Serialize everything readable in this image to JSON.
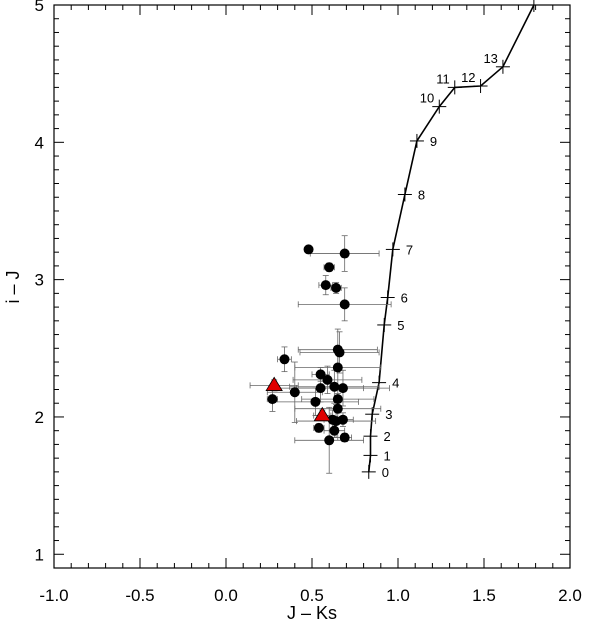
{
  "chart_data": {
    "type": "scatter",
    "xlabel": "J – Ks",
    "ylabel": "i – J",
    "xlim": [
      -1.0,
      2.0
    ],
    "ylim": [
      0.9,
      5.0
    ],
    "xticks": [
      "-1.0",
      "-0.5",
      "0.0",
      "0.5",
      "1.0",
      "1.5",
      "2.0"
    ],
    "yticks": [
      "1",
      "2",
      "3",
      "4",
      "5"
    ],
    "colors": {
      "points": "#000000",
      "triangles": "#e00000",
      "errorbars": "#666666",
      "track": "#000000"
    },
    "sequence": {
      "points": [
        {
          "x": 0.83,
          "y": 1.6,
          "label": "0"
        },
        {
          "x": 0.84,
          "y": 1.72,
          "label": "1"
        },
        {
          "x": 0.84,
          "y": 1.86,
          "label": "2"
        },
        {
          "x": 0.85,
          "y": 2.02,
          "label": "3"
        },
        {
          "x": 0.89,
          "y": 2.25,
          "label": "4"
        },
        {
          "x": 0.92,
          "y": 2.67,
          "label": "5"
        },
        {
          "x": 0.94,
          "y": 2.87,
          "label": "6"
        },
        {
          "x": 0.97,
          "y": 3.22,
          "label": "7"
        },
        {
          "x": 1.04,
          "y": 3.62,
          "label": "8"
        },
        {
          "x": 1.11,
          "y": 4.01,
          "label": "9"
        },
        {
          "x": 1.24,
          "y": 4.26,
          "label": "10"
        },
        {
          "x": 1.33,
          "y": 4.4,
          "label": "11"
        },
        {
          "x": 1.48,
          "y": 4.41,
          "label": "12"
        },
        {
          "x": 1.61,
          "y": 4.55,
          "label": "13"
        },
        {
          "x": 1.79,
          "y": 5.0,
          "label": ""
        }
      ]
    },
    "series": [
      {
        "marker": "circle",
        "points": [
          {
            "x": 0.48,
            "y": 3.22,
            "xerr": 0.0,
            "yerr": 0.0
          },
          {
            "x": 0.69,
            "y": 3.19,
            "xerr": 0.2,
            "yerr": 0.13
          },
          {
            "x": 0.6,
            "y": 3.09,
            "xerr": 0.03,
            "yerr": 0.03
          },
          {
            "x": 0.58,
            "y": 2.96,
            "xerr": 0.04,
            "yerr": 0.07
          },
          {
            "x": 0.64,
            "y": 2.94,
            "xerr": 0.03,
            "yerr": 0.04
          },
          {
            "x": 0.69,
            "y": 2.82,
            "xerr": 0.27,
            "yerr": 0.12
          },
          {
            "x": 0.65,
            "y": 2.49,
            "xerr": 0.23,
            "yerr": 0.15
          },
          {
            "x": 0.66,
            "y": 2.47,
            "xerr": 0.23,
            "yerr": 0.15
          },
          {
            "x": 0.34,
            "y": 2.42,
            "xerr": 0.04,
            "yerr": 0.09
          },
          {
            "x": 0.65,
            "y": 2.36,
            "xerr": 0.25,
            "yerr": 0.13
          },
          {
            "x": 0.55,
            "y": 2.31,
            "xerr": 0.05,
            "yerr": 0.05
          },
          {
            "x": 0.59,
            "y": 2.27,
            "xerr": 0.2,
            "yerr": 0.1
          },
          {
            "x": 0.63,
            "y": 2.22,
            "xerr": 0.26,
            "yerr": 0.12
          },
          {
            "x": 0.68,
            "y": 2.21,
            "xerr": 0.27,
            "yerr": 0.13
          },
          {
            "x": 0.55,
            "y": 2.21,
            "xerr": 0.25,
            "yerr": 0.1
          },
          {
            "x": 0.4,
            "y": 2.18,
            "xerr": 0.16,
            "yerr": 0.22
          },
          {
            "x": 0.27,
            "y": 2.13,
            "xerr": 0.03,
            "yerr": 0.09
          },
          {
            "x": 0.65,
            "y": 2.13,
            "xerr": 0.21,
            "yerr": 0.1
          },
          {
            "x": 0.52,
            "y": 2.11,
            "xerr": 0.25,
            "yerr": 0.1
          },
          {
            "x": 0.65,
            "y": 2.06,
            "xerr": 0.25,
            "yerr": 0.11
          },
          {
            "x": 0.62,
            "y": 1.98,
            "xerr": 0.05,
            "yerr": 0.07
          },
          {
            "x": 0.68,
            "y": 1.98,
            "xerr": 0.06,
            "yerr": 0.05
          },
          {
            "x": 0.64,
            "y": 1.97,
            "xerr": 0.23,
            "yerr": 0.12
          },
          {
            "x": 0.54,
            "y": 1.92,
            "xerr": 0.03,
            "yerr": 0.03
          },
          {
            "x": 0.63,
            "y": 1.9,
            "xerr": 0.06,
            "yerr": 0.05
          },
          {
            "x": 0.69,
            "y": 1.85,
            "xerr": 0.04,
            "yerr": 0.03
          },
          {
            "x": 0.6,
            "y": 1.83,
            "xerr": 0.2,
            "yerr": 0.24
          }
        ]
      },
      {
        "marker": "triangle",
        "points": [
          {
            "x": 0.28,
            "y": 2.23,
            "xerr": 0.14,
            "yerr": 0.04
          },
          {
            "x": 0.56,
            "y": 2.01,
            "xerr": 0.05,
            "yerr": 0.04
          }
        ]
      }
    ]
  }
}
